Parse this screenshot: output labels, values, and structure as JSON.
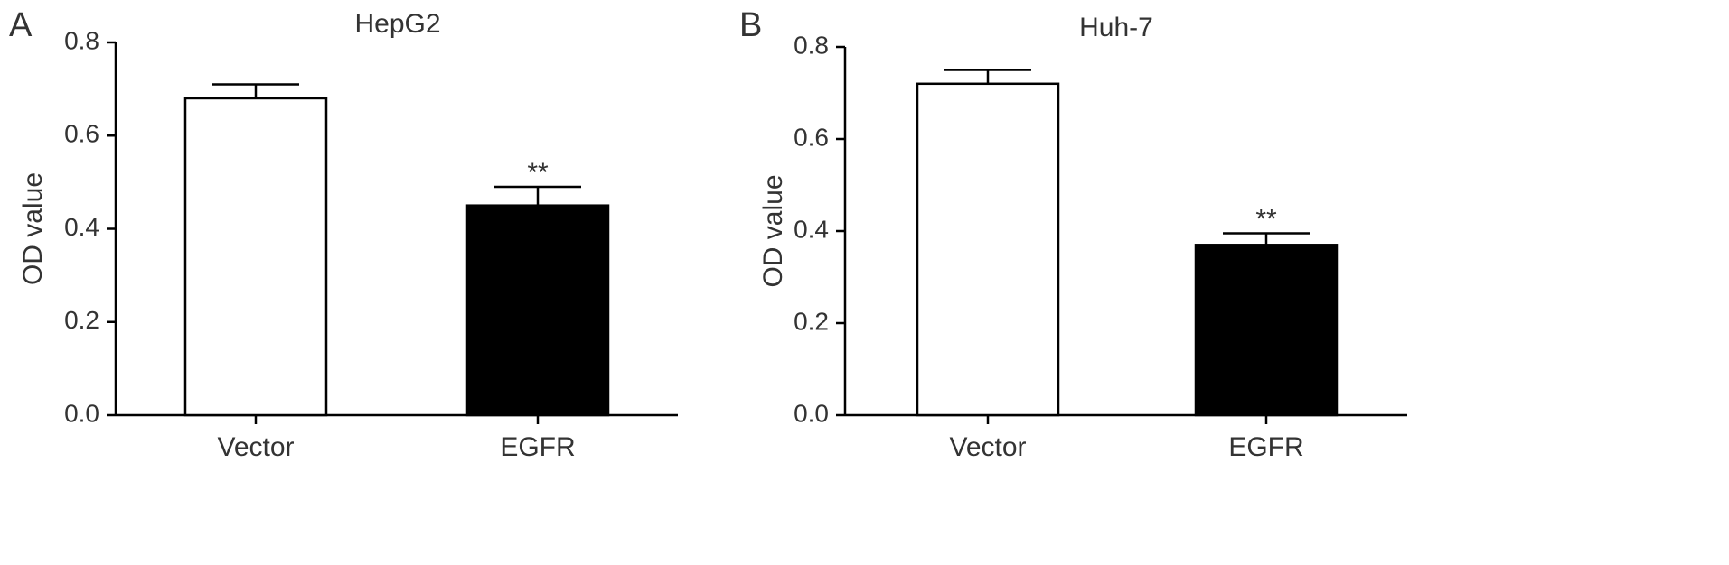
{
  "figure": {
    "panels": [
      "A",
      "B"
    ]
  },
  "colors": {
    "vector_fill": "#ffffff",
    "egfr_fill": "#000000",
    "stroke": "#000000",
    "text": "#333333"
  },
  "chart_data": [
    {
      "type": "bar",
      "panel": "A",
      "title": "HepG2",
      "xlabel": "",
      "ylabel": "OD value",
      "categories": [
        "Vector",
        "EGFR"
      ],
      "values": [
        0.68,
        0.45
      ],
      "errors": [
        0.03,
        0.04
      ],
      "significance": [
        "",
        "**"
      ],
      "ylim": [
        0.0,
        0.8
      ],
      "yticks": [
        "0.0",
        "0.2",
        "0.4",
        "0.6",
        "0.8"
      ],
      "grid": false
    },
    {
      "type": "bar",
      "panel": "B",
      "title": "Huh-7",
      "xlabel": "",
      "ylabel": "OD value",
      "categories": [
        "Vector",
        "EGFR"
      ],
      "values": [
        0.72,
        0.37
      ],
      "errors": [
        0.03,
        0.025
      ],
      "significance": [
        "",
        "**"
      ],
      "ylim": [
        0.0,
        0.8
      ],
      "yticks": [
        "0.0",
        "0.2",
        "0.4",
        "0.6",
        "0.8"
      ],
      "grid": false
    }
  ]
}
